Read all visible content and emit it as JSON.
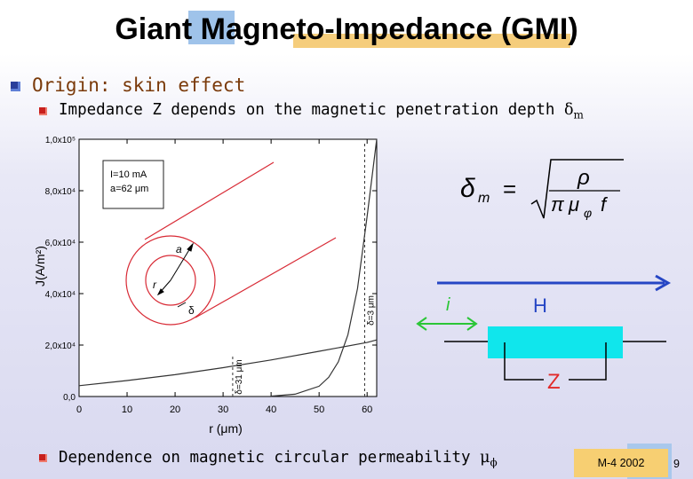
{
  "slide": {
    "title": "Giant Magneto-Impedance (GMI)",
    "bullet1": "Origin: skin effect",
    "bullet2_text": "Impedance Z depends on the magnetic penetration depth ",
    "bullet2_symbol": "δ",
    "bullet2_subscript": "m",
    "bullet3_text": "Dependence on magnetic circular permeability ",
    "bullet3_symbol": "μ",
    "bullet3_subscript": "ϕ",
    "footer": "M-4 2002",
    "page_number": "9"
  },
  "colors": {
    "title_deco_blue": "#9fc3ea",
    "title_deco_orange": "#f5cd7c",
    "accent_red": "#d82a35",
    "h_arrow_blue": "#2646c4",
    "i_arrow_green": "#2ac636",
    "wire_cyan": "#10e6ec",
    "z_label_red": "#e22a2a"
  },
  "chart_data": {
    "type": "line",
    "xlabel": "r (μm)",
    "ylabel_fragment": "J(A/m²)",
    "x_ticks": [
      "0",
      "10",
      "20",
      "30",
      "40",
      "50",
      "60"
    ],
    "y_ticks": [
      "0,0",
      "2,0x10⁴",
      "4,0x10⁴",
      "6,0x10⁴",
      "8,0x10⁴",
      "1,0x10⁵"
    ],
    "xlim": [
      0,
      62
    ],
    "ylim": [
      0,
      100000
    ],
    "legend_lines": [
      "I=10 mA",
      "a=62 μm"
    ],
    "series": [
      {
        "x": [
          0,
          10,
          20,
          30,
          40,
          50,
          60,
          62
        ],
        "y": [
          4200,
          6200,
          8500,
          11200,
          14200,
          17600,
          21000,
          22000
        ]
      },
      {
        "x": [
          40,
          45,
          50,
          52,
          54,
          56,
          58,
          60,
          61,
          62
        ],
        "y": [
          150,
          900,
          4000,
          7500,
          13500,
          24000,
          42000,
          70000,
          85000,
          100000
        ]
      }
    ],
    "annotations": [
      {
        "x": 32,
        "label": "δ=31 μm"
      },
      {
        "x": 59.5,
        "label": "δ=3 μm"
      }
    ],
    "inset_labels": {
      "outer_radius": "a",
      "inner_radius": "r",
      "depth": "δ"
    }
  },
  "formula": {
    "lhs": "δ",
    "lhs_sub": "m",
    "equals": "=",
    "numerator": "ρ",
    "den_pi": "π",
    "den_mu": "μ",
    "den_sub": "φ",
    "den_f": "f"
  },
  "diagram": {
    "field_label": "H",
    "current_label": "i",
    "impedance_label": "Z"
  }
}
